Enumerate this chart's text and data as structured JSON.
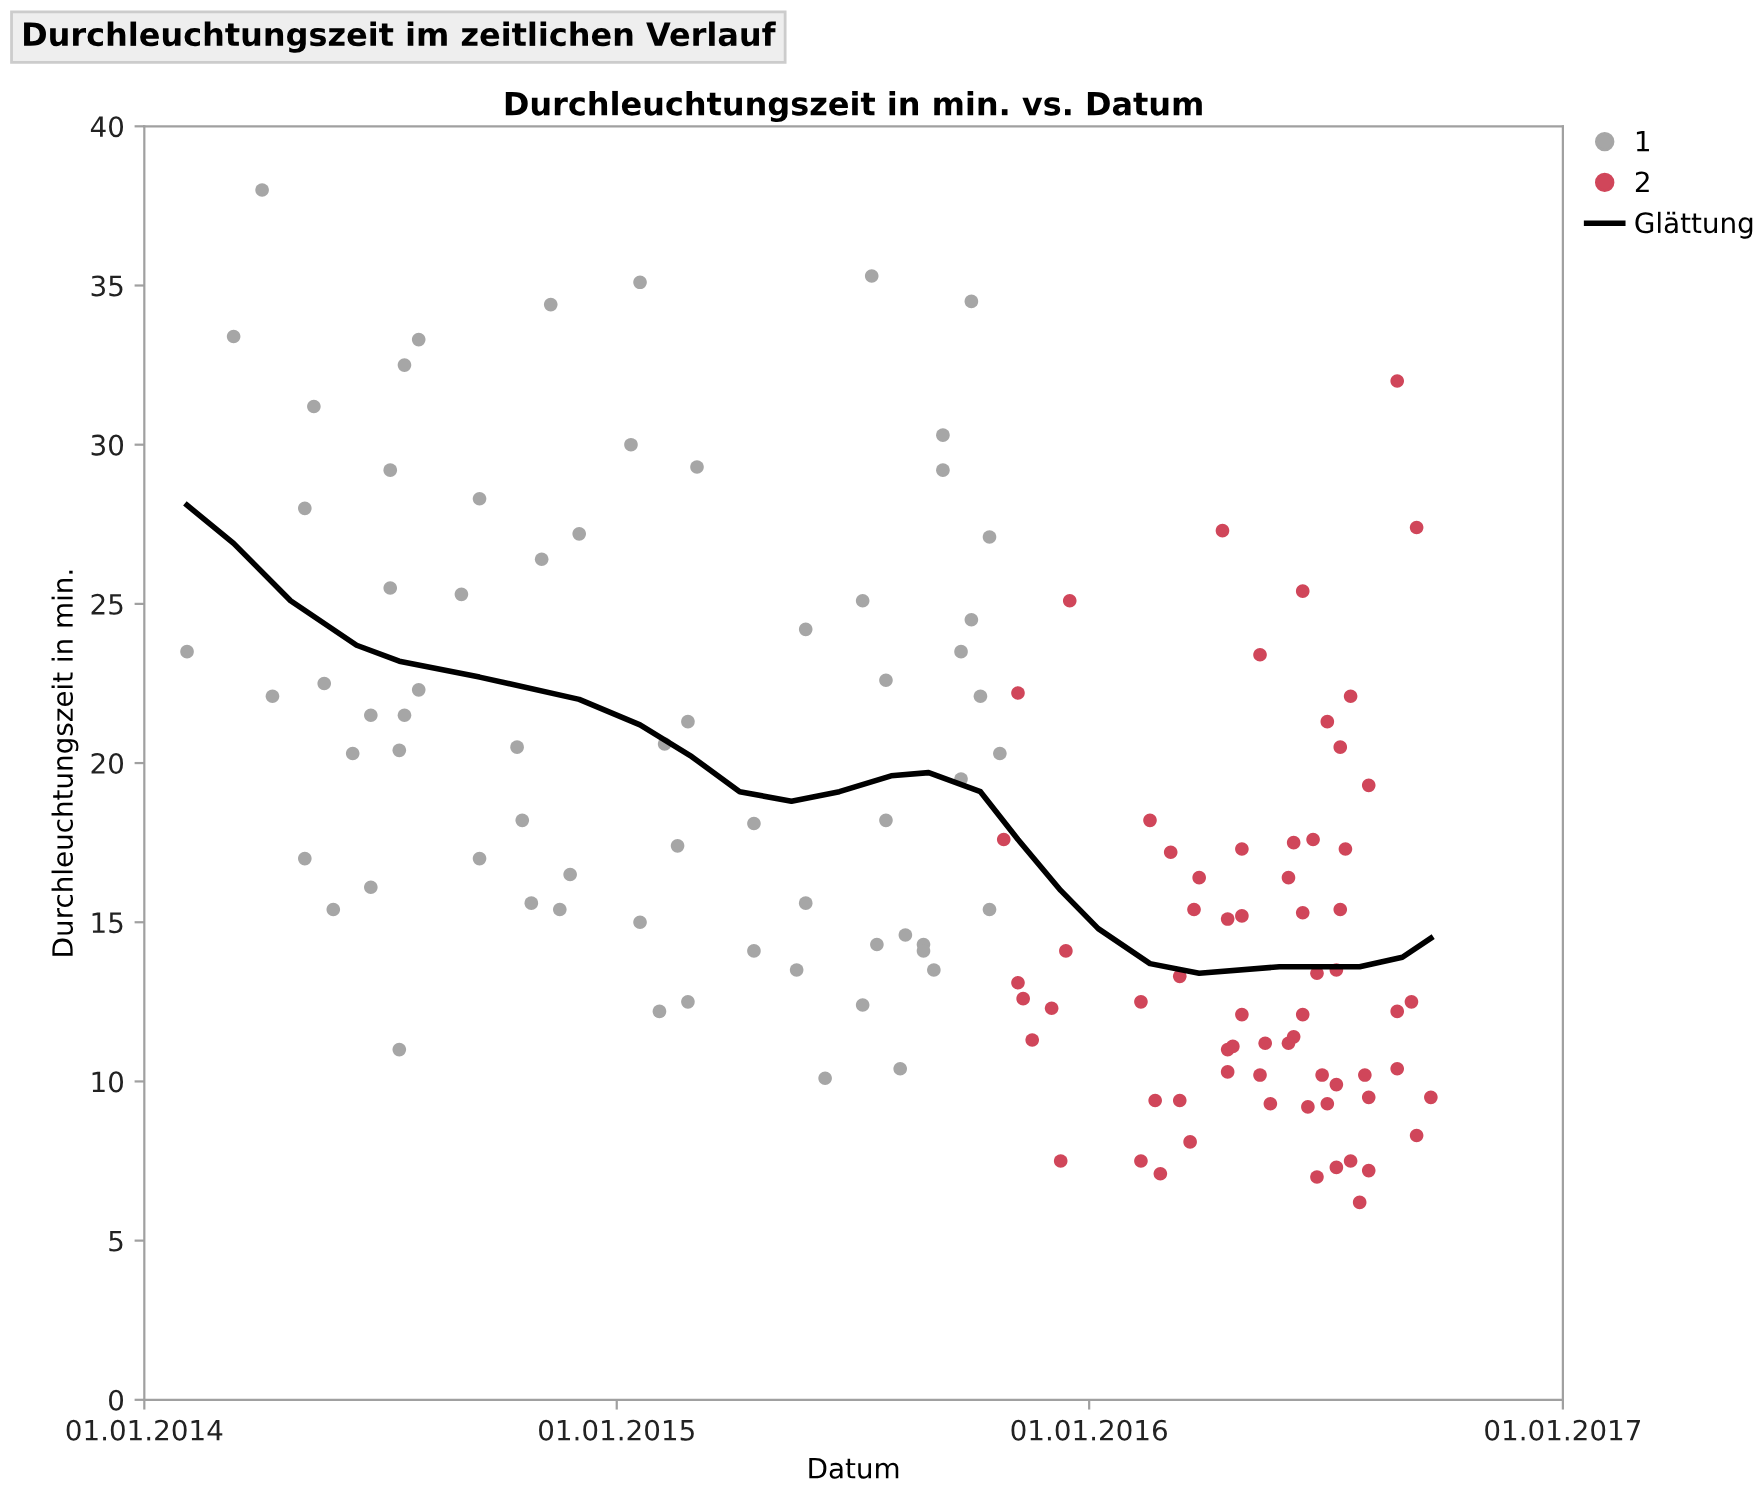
{
  "chart_data": {
    "type": "scatter",
    "title": "Durchleuchtungszeit im zeitlichen Verlauf",
    "subtitle": "Durchleuchtungszeit in min. vs. Datum",
    "xlabel": "Datum",
    "ylabel": "Durchleuchtungszeit in min.",
    "xlim": [
      "2014-01-01",
      "2017-01-01"
    ],
    "xticks": [
      {
        "value": "2014-01-01",
        "label": "01.01.2014"
      },
      {
        "value": "2015-01-01",
        "label": "01.01.2015"
      },
      {
        "value": "2016-01-01",
        "label": "01.01.2016"
      },
      {
        "value": "2017-01-01",
        "label": "01.01.2017"
      }
    ],
    "ylim": [
      0,
      40
    ],
    "yticks": [
      0,
      5,
      10,
      15,
      20,
      25,
      30,
      35,
      40
    ],
    "legend": "top right",
    "marker": "circle",
    "series": [
      {
        "name": "1",
        "color": "#a6a6a6",
        "x": [
          "2014-02-03",
          "2014-03-11",
          "2014-04-02",
          "2014-04-10",
          "2014-05-05",
          "2014-05-12",
          "2014-05-20",
          "2014-05-05",
          "2014-05-27",
          "2014-06-11",
          "2014-06-25",
          "2014-06-25",
          "2014-07-10",
          "2014-07-10",
          "2014-07-17",
          "2014-07-17",
          "2014-07-21",
          "2014-07-21",
          "2014-08-01",
          "2014-08-01",
          "2014-09-03",
          "2014-09-17",
          "2014-09-17",
          "2014-10-16",
          "2014-10-20",
          "2014-10-27",
          "2014-11-04",
          "2014-11-11",
          "2014-11-18",
          "2014-11-26",
          "2014-12-03",
          "2015-01-19",
          "2015-01-12",
          "2015-01-19",
          "2015-02-03",
          "2015-02-07",
          "2015-02-17",
          "2015-02-25",
          "2015-02-25",
          "2015-03-04",
          "2015-04-17",
          "2015-04-17",
          "2015-05-20",
          "2015-05-27",
          "2015-05-27",
          "2015-06-11",
          "2015-07-10",
          "2015-07-10",
          "2015-07-17",
          "2015-07-28",
          "2015-07-28",
          "2015-07-21",
          "2015-08-08",
          "2015-08-12",
          "2015-08-26",
          "2015-08-26",
          "2015-09-03",
          "2015-09-10",
          "2015-09-10",
          "2015-09-24",
          "2015-10-02",
          "2015-10-02",
          "2015-10-09",
          "2015-10-16",
          "2015-10-24",
          "2015-10-16",
          "2015-09-24"
        ],
        "values": [
          23.5,
          33.4,
          38.0,
          22.1,
          28.0,
          31.2,
          22.5,
          17.0,
          15.4,
          20.3,
          21.5,
          16.1,
          29.2,
          25.5,
          20.4,
          11.0,
          21.5,
          32.5,
          33.3,
          22.3,
          25.3,
          17.0,
          28.3,
          20.5,
          18.2,
          15.6,
          26.4,
          34.4,
          15.4,
          16.5,
          27.2,
          35.1,
          30.0,
          15.0,
          12.2,
          20.6,
          17.4,
          12.5,
          21.3,
          29.3,
          18.1,
          14.1,
          13.5,
          15.6,
          24.2,
          10.1,
          12.4,
          25.1,
          35.3,
          22.6,
          18.2,
          14.3,
          10.4,
          14.6,
          14.3,
          14.1,
          13.5,
          30.3,
          29.2,
          23.5,
          34.5,
          24.5,
          22.1,
          27.1,
          20.3,
          15.4,
          19.5
        ]
      },
      {
        "name": "2",
        "color": "#d0465a",
        "x": [
          "2015-11-07",
          "2015-10-27",
          "2015-11-07",
          "2015-11-11",
          "2015-11-18",
          "2015-12-03",
          "2015-12-14",
          "2015-12-10",
          "2015-12-17",
          "2016-02-10",
          "2016-02-10",
          "2016-02-17",
          "2016-02-21",
          "2016-02-25",
          "2016-03-04",
          "2016-03-11",
          "2016-03-11",
          "2016-03-19",
          "2016-03-22",
          "2016-03-26",
          "2016-04-13",
          "2016-04-17",
          "2016-04-17",
          "2016-04-17",
          "2016-04-21",
          "2016-04-28",
          "2016-04-28",
          "2016-04-28",
          "2016-05-12",
          "2016-05-12",
          "2016-05-16",
          "2016-05-20",
          "2016-06-03",
          "2016-06-07",
          "2016-06-07",
          "2016-06-03",
          "2016-06-14",
          "2016-06-14",
          "2016-06-14",
          "2016-06-18",
          "2016-06-25",
          "2016-06-22",
          "2016-06-29",
          "2016-07-03",
          "2016-07-03",
          "2016-07-10",
          "2016-07-10",
          "2016-07-13",
          "2016-07-17",
          "2016-07-13",
          "2016-07-21",
          "2016-07-21",
          "2016-07-28",
          "2016-08-01",
          "2016-08-04",
          "2016-08-04",
          "2016-08-04",
          "2016-08-26",
          "2016-08-26",
          "2016-08-26",
          "2016-09-06",
          "2016-09-10",
          "2016-09-10",
          "2016-09-21",
          "2016-06-25",
          "2016-07-10"
        ],
        "values": [
          22.2,
          17.6,
          13.1,
          12.6,
          11.3,
          12.3,
          14.1,
          7.5,
          25.1,
          12.5,
          7.5,
          18.2,
          9.4,
          7.1,
          17.2,
          13.3,
          9.4,
          8.1,
          15.4,
          16.4,
          27.3,
          15.1,
          11.0,
          10.3,
          11.1,
          17.3,
          12.1,
          15.2,
          23.4,
          10.2,
          11.2,
          9.3,
          16.4,
          17.5,
          11.4,
          11.2,
          25.4,
          12.1,
          15.3,
          9.2,
          7.0,
          17.6,
          10.2,
          21.3,
          9.3,
          9.9,
          7.3,
          20.5,
          17.3,
          15.4,
          22.1,
          7.5,
          6.2,
          10.2,
          7.2,
          9.5,
          19.3,
          32.0,
          10.4,
          12.2,
          12.5,
          8.3,
          27.4,
          9.5,
          13.4,
          13.5
        ]
      },
      {
        "name": "Glättung",
        "type": "line",
        "marker": "none",
        "color": "#000000",
        "line_style": "solid",
        "x": [
          "2014-02-03",
          "2014-03-11",
          "2014-04-24",
          "2014-06-14",
          "2014-07-17",
          "2014-09-17",
          "2014-12-03",
          "2015-01-19",
          "2015-02-28",
          "2015-04-06",
          "2015-05-16",
          "2015-06-22",
          "2015-08-01",
          "2015-08-30",
          "2015-10-09",
          "2015-11-07",
          "2015-12-10",
          "2016-01-08",
          "2016-02-17",
          "2016-03-26",
          "2016-05-27",
          "2016-07-28",
          "2016-08-30",
          "2016-09-21"
        ],
        "values": [
          28.1,
          26.9,
          25.1,
          23.7,
          23.2,
          22.7,
          22.0,
          21.2,
          20.2,
          19.1,
          18.8,
          19.1,
          19.6,
          19.7,
          19.1,
          17.6,
          16.0,
          14.8,
          13.7,
          13.4,
          13.6,
          13.6,
          13.9,
          14.5
        ]
      }
    ]
  }
}
